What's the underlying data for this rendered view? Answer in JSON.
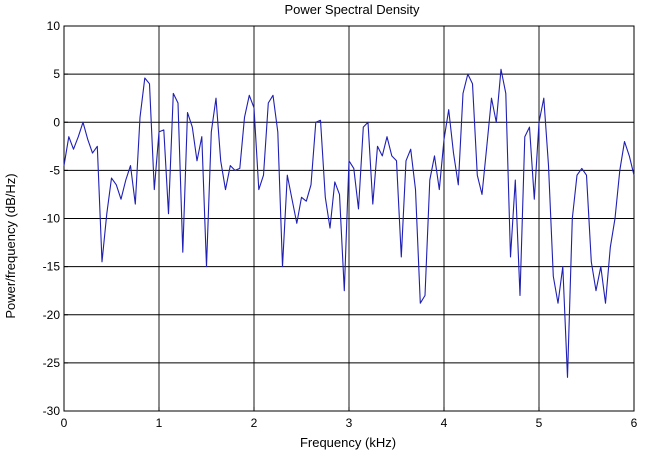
{
  "chart_data": {
    "type": "line",
    "title": "Power Spectral Density",
    "xlabel": "Frequency (kHz)",
    "ylabel": "Power/frequency (dB/Hz)",
    "xlim": [
      0,
      6
    ],
    "ylim": [
      -30,
      10
    ],
    "xticks": [
      "0",
      "1",
      "2",
      "3",
      "4",
      "5",
      "6"
    ],
    "yticks": [
      "10",
      "5",
      "0",
      "-5",
      "-10",
      "-15",
      "-20",
      "-25",
      "-30"
    ],
    "grid": true,
    "line_color": "#1f1fb4",
    "series": [
      {
        "x": [
          0,
          0.05,
          0.1,
          0.15,
          0.2,
          0.25,
          0.3,
          0.35,
          0.4,
          0.45,
          0.5,
          0.55,
          0.6,
          0.65,
          0.7,
          0.75,
          0.8,
          0.85,
          0.9,
          0.95,
          1.0,
          1.05,
          1.1,
          1.15,
          1.2,
          1.25,
          1.3,
          1.35,
          1.4,
          1.45,
          1.5,
          1.55,
          1.6,
          1.65,
          1.7,
          1.75,
          1.8,
          1.85,
          1.9,
          1.95,
          2.0,
          2.05,
          2.1,
          2.15,
          2.2,
          2.25,
          2.3,
          2.35,
          2.4,
          2.45,
          2.5,
          2.55,
          2.6,
          2.65,
          2.7,
          2.75,
          2.8,
          2.85,
          2.9,
          2.95,
          3.0,
          3.05,
          3.1,
          3.15,
          3.2,
          3.25,
          3.3,
          3.35,
          3.4,
          3.45,
          3.5,
          3.55,
          3.6,
          3.65,
          3.7,
          3.75,
          3.8,
          3.85,
          3.9,
          3.95,
          4.0,
          4.05,
          4.1,
          4.15,
          4.2,
          4.25,
          4.3,
          4.35,
          4.4,
          4.45,
          4.5,
          4.55,
          4.6,
          4.65,
          4.7,
          4.75,
          4.8,
          4.85,
          4.9,
          4.95,
          5.0,
          5.05,
          5.1,
          5.15,
          5.2,
          5.25,
          5.3,
          5.35,
          5.4,
          5.45,
          5.5,
          5.55,
          5.6,
          5.65,
          5.7,
          5.75,
          5.8,
          5.85,
          5.9,
          5.95,
          6.0
        ],
        "y": [
          -4.5,
          -1.5,
          -2.8,
          -1.5,
          0,
          -1.8,
          -3.2,
          -2.5,
          -14.5,
          -9.5,
          -5.8,
          -6.5,
          -8,
          -6,
          -4.5,
          -8.5,
          0.5,
          4.6,
          4,
          -7,
          -1,
          -0.8,
          -9.5,
          3,
          2,
          -13.5,
          1,
          -0.5,
          -4,
          -1.5,
          -15,
          -1,
          2.5,
          -4,
          -7,
          -4.5,
          -5,
          -4.8,
          0.5,
          2.8,
          1.5,
          -7,
          -5.5,
          2,
          2.8,
          -1,
          -15,
          -5.5,
          -8,
          -10.5,
          -7.8,
          -8.2,
          -6.5,
          0,
          0.2,
          -7.8,
          -11,
          -6.2,
          -7.5,
          -17.5,
          -4,
          -4.8,
          -9,
          -0.5,
          0,
          -8.5,
          -2.5,
          -3.5,
          -1.5,
          -3.5,
          -4,
          -14,
          -4,
          -2.8,
          -7,
          -18.8,
          -18,
          -6,
          -3.5,
          -7,
          -1.8,
          1.3,
          -3.2,
          -6.5,
          3,
          5,
          4,
          -5.5,
          -7.5,
          -2.5,
          2.5,
          0,
          5.5,
          3,
          -14,
          -6,
          -18,
          -1.5,
          -0.5,
          -8,
          0,
          2.5,
          -4.5,
          -16,
          -18.8,
          -15,
          -26.5,
          -10,
          -5.5,
          -4.8,
          -5.5,
          -14.5,
          -17.5,
          -15,
          -18.8,
          -13,
          -10,
          -5,
          -2,
          -3.5,
          -5.5
        ]
      }
    ]
  }
}
